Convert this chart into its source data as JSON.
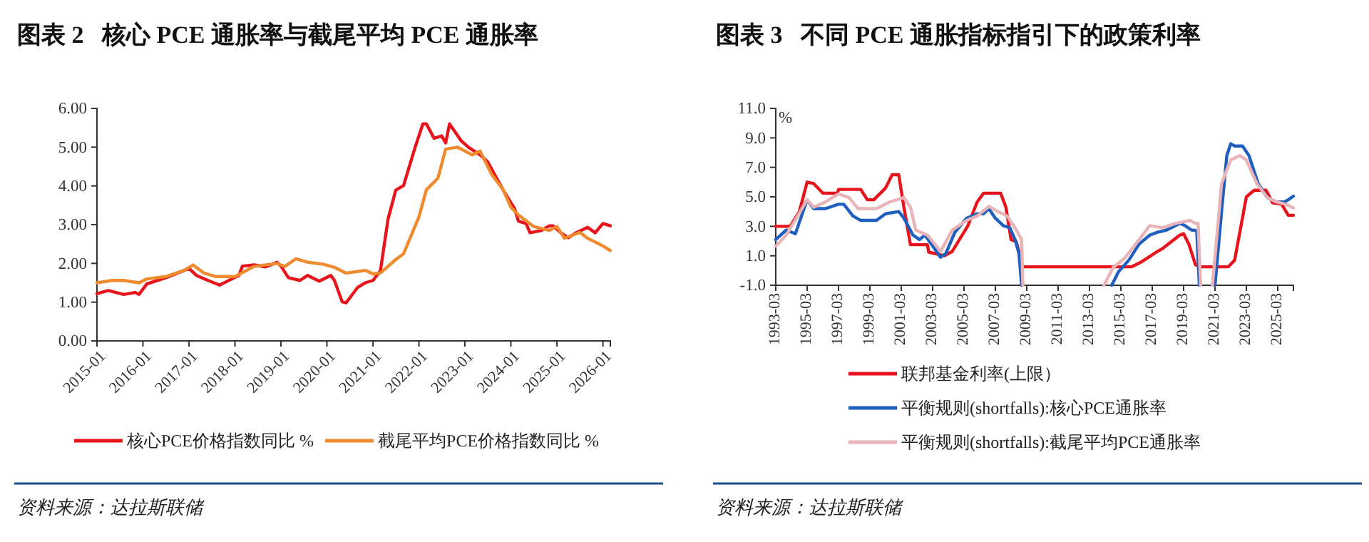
{
  "chart_data": [
    {
      "type": "line",
      "title": "图表 2   核心 PCE 通胀率与截尾平均 PCE 通胀率",
      "xlim": [
        "2015-01",
        "2026-03"
      ],
      "xticks": [
        "2015-01",
        "2016-01",
        "2017-01",
        "2018-01",
        "2019-01",
        "2020-01",
        "2021-01",
        "2022-01",
        "2023-01",
        "2024-01",
        "2025-01",
        "2026-01"
      ],
      "ylim": [
        0,
        6
      ],
      "yticks": [
        {
          "value": 0,
          "label": "0.00"
        },
        {
          "value": 1,
          "label": "1.00"
        },
        {
          "value": 2,
          "label": "2.00"
        },
        {
          "value": 3,
          "label": "3.00"
        },
        {
          "value": 4,
          "label": "4.00"
        },
        {
          "value": 5,
          "label": "5.00"
        },
        {
          "value": 6,
          "label": "6.00"
        }
      ],
      "grid": false,
      "legend": "bottom",
      "marker": "none",
      "line_style": "solid",
      "annotations": [
        "资料来源：达拉斯联储"
      ],
      "series": [
        {
          "name": "核心PCE价格指数同比 %",
          "color": "#e8141b",
          "x": [
            "2015-01",
            "2015-04",
            "2015-08",
            "2015-11",
            "2015-12",
            "2016-02",
            "2016-07",
            "2017-01",
            "2017-03",
            "2017-06",
            "2017-09",
            "2017-12",
            "2018-02",
            "2018-03",
            "2018-06",
            "2018-09",
            "2018-12",
            "2019-01",
            "2019-03",
            "2019-06",
            "2019-08",
            "2019-11",
            "2020-02",
            "2020-03",
            "2020-05",
            "2020-06",
            "2020-09",
            "2020-11",
            "2021-01",
            "2021-03",
            "2021-05",
            "2021-07",
            "2021-09",
            "2021-12",
            "2022-02",
            "2022-03",
            "2022-05",
            "2022-07",
            "2022-08",
            "2022-09",
            "2022-12",
            "2023-02",
            "2023-05",
            "2023-07",
            "2023-11",
            "2024-02",
            "2024-03",
            "2024-05",
            "2024-06",
            "2024-09",
            "2024-11",
            "2024-12",
            "2025-02",
            "2025-04",
            "2025-06",
            "2025-09",
            "2025-11",
            "2026-01",
            "2026-03"
          ],
          "values": [
            1.22,
            1.3,
            1.2,
            1.25,
            1.2,
            1.47,
            1.63,
            1.87,
            1.69,
            1.56,
            1.44,
            1.59,
            1.69,
            1.93,
            1.96,
            1.91,
            2.03,
            1.93,
            1.63,
            1.56,
            1.69,
            1.54,
            1.69,
            1.56,
            1.01,
            0.98,
            1.38,
            1.5,
            1.56,
            1.81,
            3.15,
            3.89,
            4.01,
            4.99,
            5.6,
            5.6,
            5.23,
            5.29,
            5.11,
            5.6,
            5.17,
            4.99,
            4.8,
            4.62,
            3.89,
            3.4,
            3.09,
            3.03,
            2.79,
            2.85,
            2.97,
            2.97,
            2.79,
            2.66,
            2.79,
            2.93,
            2.79,
            3.03,
            2.97
          ]
        },
        {
          "name": "截尾平均PCE价格指数同比 %",
          "color": "#f08a2e",
          "x": [
            "2015-01",
            "2015-05",
            "2015-08",
            "2015-12",
            "2016-02",
            "2016-07",
            "2016-12",
            "2017-02",
            "2017-05",
            "2017-08",
            "2018-01",
            "2018-06",
            "2018-12",
            "2019-02",
            "2019-05",
            "2019-08",
            "2019-12",
            "2020-03",
            "2020-06",
            "2020-11",
            "2021-01",
            "2021-03",
            "2021-07",
            "2021-09",
            "2022-01",
            "2022-03",
            "2022-06",
            "2022-08",
            "2022-11",
            "2023-01",
            "2023-03",
            "2023-05",
            "2023-08",
            "2023-11",
            "2024-01",
            "2024-03",
            "2024-07",
            "2024-11",
            "2025-01",
            "2025-03",
            "2025-07",
            "2025-09",
            "2026-01",
            "2026-03"
          ],
          "values": [
            1.5,
            1.56,
            1.56,
            1.5,
            1.6,
            1.66,
            1.83,
            1.96,
            1.75,
            1.66,
            1.66,
            1.92,
            2.0,
            1.92,
            2.12,
            2.03,
            1.98,
            1.9,
            1.75,
            1.82,
            1.73,
            1.75,
            2.1,
            2.25,
            3.2,
            3.9,
            4.2,
            4.95,
            5.0,
            4.9,
            4.8,
            4.9,
            4.3,
            3.9,
            3.45,
            3.25,
            2.95,
            2.85,
            2.95,
            2.65,
            2.8,
            2.65,
            2.45,
            2.33
          ]
        }
      ]
    },
    {
      "type": "line",
      "title": "图表 3   不同 PCE 通胀指标指引下的政策利率",
      "ylabel": "%",
      "xlim": [
        "1993-03",
        "2026-03"
      ],
      "xticks": [
        "1993-03",
        "1995-03",
        "1997-03",
        "1999-03",
        "2001-03",
        "2003-03",
        "2005-03",
        "2007-03",
        "2009-03",
        "2011-03",
        "2013-03",
        "2015-03",
        "2017-03",
        "2019-03",
        "2021-03",
        "2023-03",
        "2025-03"
      ],
      "ylim": [
        -1,
        11
      ],
      "yticks": [
        {
          "value": -1,
          "label": "-1.0"
        },
        {
          "value": 1,
          "label": "1.0"
        },
        {
          "value": 3,
          "label": "3.0"
        },
        {
          "value": 5,
          "label": "5.0"
        },
        {
          "value": 7,
          "label": "7.0"
        },
        {
          "value": 9,
          "label": "9.0"
        },
        {
          "value": 11,
          "label": "11.0"
        }
      ],
      "grid": false,
      "legend": "bottom",
      "marker": "none",
      "line_style": "solid",
      "annotations": [
        "资料来源：达拉斯联储"
      ],
      "series": [
        {
          "name": "联邦基金利率(上限）",
          "color": "#e8141b",
          "x": [
            "1993-03",
            "1994-02",
            "1994-09",
            "1995-03",
            "1995-08",
            "1996-03",
            "1997-02",
            "1997-03",
            "1998-08",
            "1999-01",
            "1999-06",
            "2000-03",
            "2000-08",
            "2001-01",
            "2001-05",
            "2001-10",
            "2002-11",
            "2002-12",
            "2003-12",
            "2004-06",
            "2005-06",
            "2006-01",
            "2006-06",
            "2007-07",
            "2007-11",
            "2008-03",
            "2008-07",
            "2008-12",
            "2015-11",
            "2016-07",
            "2017-07",
            "2017-11",
            "2018-12",
            "2019-03",
            "2019-07",
            "2019-12",
            "2020-03",
            "2022-01",
            "2022-06",
            "2022-11",
            "2023-03",
            "2023-09",
            "2024-06",
            "2024-11",
            "2025-06",
            "2025-11",
            "2026-03"
          ],
          "values": [
            3.0,
            3.0,
            4.0,
            6.0,
            5.9,
            5.25,
            5.25,
            5.5,
            5.5,
            4.8,
            4.8,
            5.6,
            6.5,
            6.5,
            4.3,
            1.75,
            1.75,
            1.25,
            1.0,
            1.3,
            3.05,
            4.65,
            5.25,
            5.25,
            4.3,
            2.1,
            1.95,
            0.25,
            0.25,
            0.6,
            1.3,
            1.5,
            2.4,
            2.5,
            1.8,
            0.4,
            0.25,
            0.25,
            0.7,
            3.1,
            5.0,
            5.45,
            5.45,
            4.6,
            4.5,
            3.75,
            3.75
          ]
        },
        {
          "name": "平衡规则(shortfalls):核心PCE通胀率",
          "color": "#1f5fbf",
          "x": [
            "1993-03",
            "1993-11",
            "1994-06",
            "1995-03",
            "1995-08",
            "1996-05",
            "1997-03",
            "1997-07",
            "1998-02",
            "1998-08",
            "1999-08",
            "2000-03",
            "2001-01",
            "2001-05",
            "2001-12",
            "2002-05",
            "2002-09",
            "2003-02",
            "2003-09",
            "2004-01",
            "2004-08",
            "2005-05",
            "2006-01",
            "2006-06",
            "2006-10",
            "2007-03",
            "2007-09",
            "2008-02",
            "2008-06",
            "2008-09",
            "2008-11",
            "2011-01",
            "2014-08",
            "2015-01",
            "2015-09",
            "2016-05",
            "2017-01",
            "2017-07",
            "2018-02",
            "2018-12",
            "2019-04",
            "2019-09",
            "2020-01",
            "2020-03",
            "2020-09",
            "2021-03",
            "2021-08",
            "2021-12",
            "2022-03",
            "2022-06",
            "2022-12",
            "2023-05",
            "2023-12",
            "2024-07",
            "2025-02",
            "2025-08",
            "2025-11",
            "2026-03"
          ],
          "values": [
            2.1,
            2.75,
            2.5,
            4.8,
            4.2,
            4.2,
            4.5,
            4.5,
            3.7,
            3.4,
            3.4,
            3.85,
            4.0,
            3.55,
            2.4,
            2.1,
            2.4,
            1.8,
            0.9,
            1.15,
            2.6,
            3.55,
            3.85,
            3.85,
            4.2,
            3.55,
            3.05,
            2.9,
            2.1,
            1.15,
            -1,
            null,
            -1,
            -0.1,
            0.7,
            1.8,
            2.4,
            2.6,
            2.75,
            3.2,
            3.05,
            2.75,
            2.7,
            -1,
            null,
            -1,
            4.0,
            7.8,
            8.6,
            8.45,
            8.45,
            7.8,
            5.9,
            4.95,
            4.65,
            4.65,
            4.8,
            5.05
          ]
        },
        {
          "name": "平衡规则(shortfalls):截尾平均PCE通胀率",
          "color": "#e8b4b8",
          "x": [
            "1993-03",
            "1993-11",
            "1995-03",
            "1995-08",
            "1996-05",
            "1997-03",
            "1997-11",
            "1998-06",
            "1999-08",
            "2000-06",
            "2001-05",
            "2001-10",
            "2002-02",
            "2002-11",
            "2003-09",
            "2004-06",
            "2005-05",
            "2006-01",
            "2006-10",
            "2007-05",
            "2007-12",
            "2008-07",
            "2008-11",
            "2008-12",
            "2011-01",
            "2014-02",
            "2014-09",
            "2015-06",
            "2016-05",
            "2017-01",
            "2017-11",
            "2018-09",
            "2019-08",
            "2019-12",
            "2020-02",
            "2020-04",
            "2020-08",
            "2021-01",
            "2021-08",
            "2022-03",
            "2022-10",
            "2023-03",
            "2023-11",
            "2024-07",
            "2025-02",
            "2025-09",
            "2026-03"
          ],
          "values": [
            1.65,
            2.4,
            4.8,
            4.3,
            4.65,
            5.2,
            4.95,
            4.2,
            4.2,
            4.65,
            4.95,
            4.3,
            2.75,
            2.4,
            1.3,
            2.75,
            3.4,
            3.7,
            4.35,
            4.0,
            3.7,
            2.75,
            2.1,
            -1,
            null,
            -1,
            0.2,
            0.85,
            2.1,
            3.05,
            2.9,
            3.2,
            3.4,
            3.2,
            3.2,
            -1,
            null,
            -1,
            5.9,
            7.5,
            7.8,
            7.5,
            5.9,
            4.95,
            4.65,
            4.5,
            4.25
          ]
        }
      ]
    }
  ]
}
